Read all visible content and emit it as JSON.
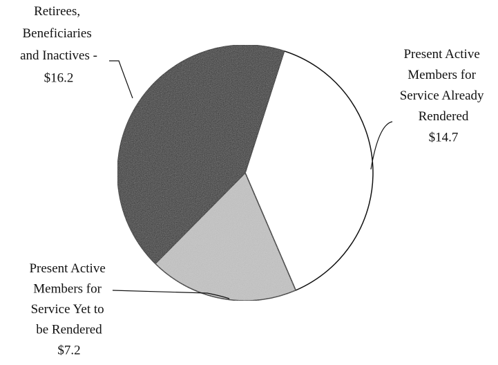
{
  "chart_data": {
    "type": "pie",
    "categories": [
      "Present Active Members for Service Already Rendered -",
      "Present Active Members for Service Yet to be Rendered -",
      "Retirees, Beneficiaries and Inactives -"
    ],
    "values": [
      14.7,
      7.2,
      16.2
    ],
    "value_labels": [
      "$14.7",
      "$7.2",
      "$16.2"
    ],
    "colors": [
      "#ffffff",
      "#c4c4c4",
      "#2b2b2b"
    ]
  }
}
